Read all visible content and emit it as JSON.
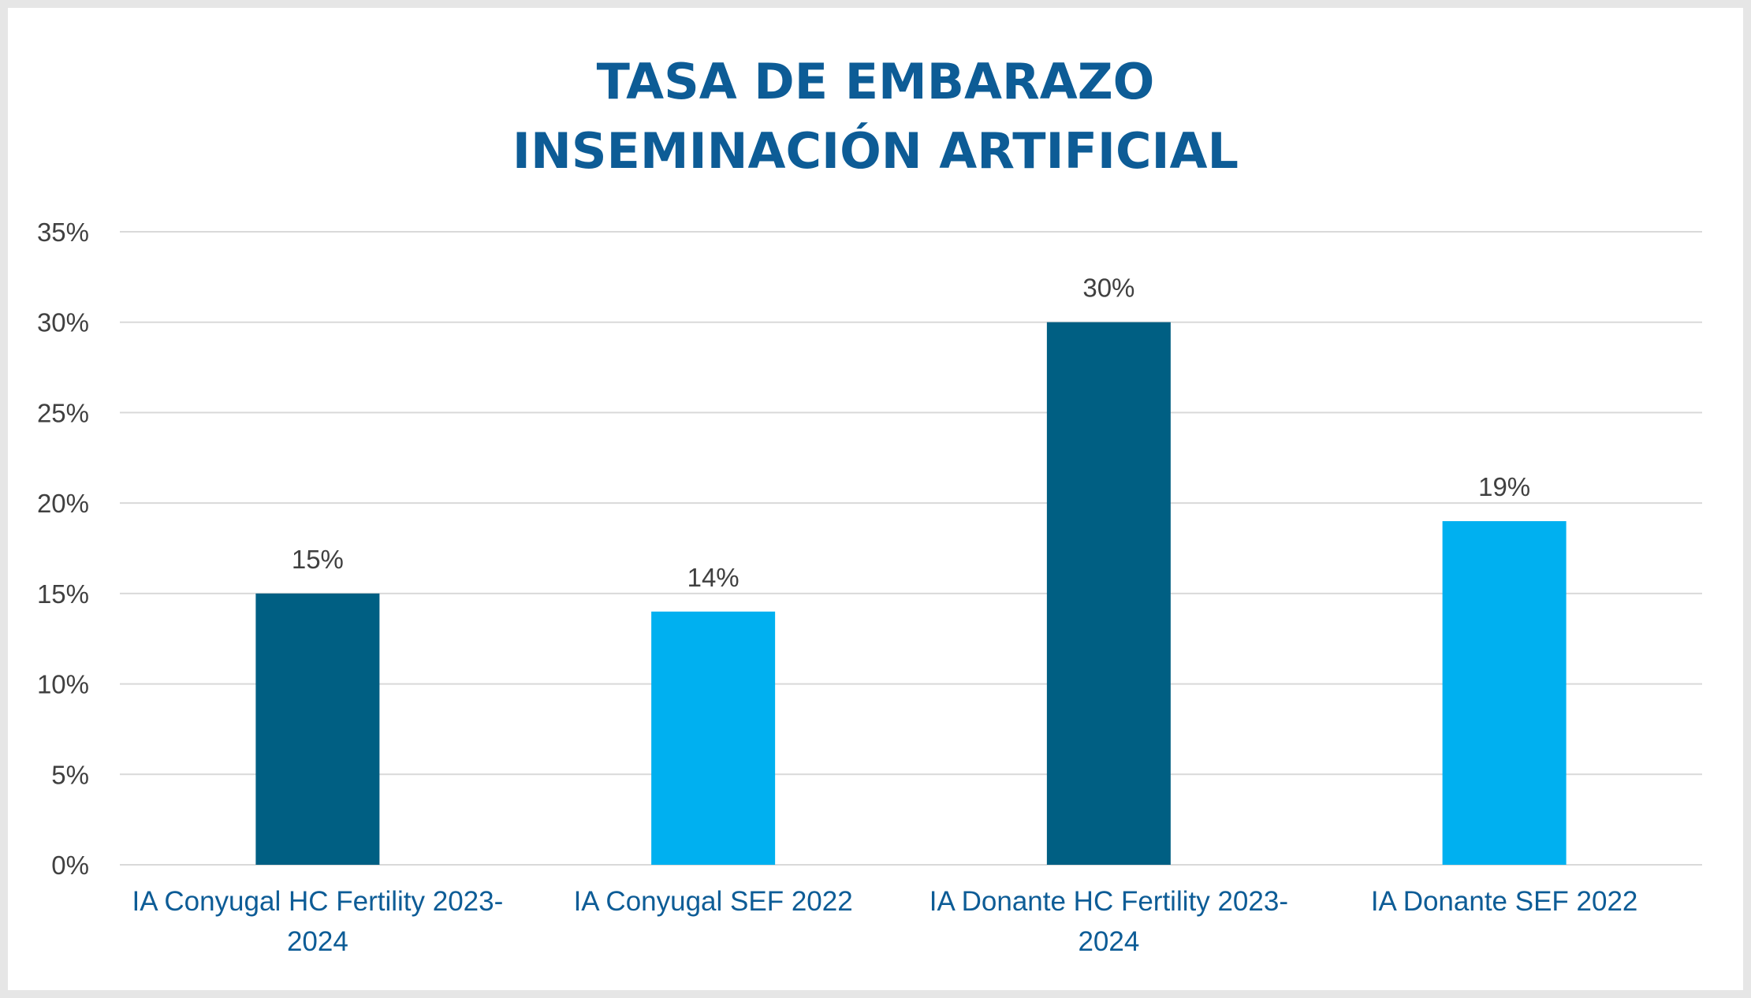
{
  "chart_data": {
    "type": "bar",
    "title": [
      "TASA DE EMBARAZO",
      "INSEMINACIÓN ARTIFICIAL"
    ],
    "categories": [
      [
        "IA Conyugal HC Fertility 2023-",
        "2024"
      ],
      [
        "IA Conyugal SEF 2022"
      ],
      [
        "IA Donante HC Fertility 2023-",
        "2024"
      ],
      [
        "IA Donante SEF 2022"
      ]
    ],
    "values": [
      15,
      14,
      30,
      19
    ],
    "value_labels": [
      "15%",
      "14%",
      "30%",
      "19%"
    ],
    "bar_colors": [
      "#005f83",
      "#00b0f0",
      "#005f83",
      "#00b0f0"
    ],
    "yticks": [
      0,
      5,
      10,
      15,
      20,
      25,
      30,
      35
    ],
    "ytick_labels": [
      "0%",
      "5%",
      "10%",
      "15%",
      "20%",
      "25%",
      "30%",
      "35%"
    ],
    "ylim": [
      0,
      35
    ],
    "grid": true,
    "legend": "none",
    "colors": {
      "title": "#0d5c96",
      "category_label": "#0d5c96",
      "gridline": "#d9d9d9",
      "axis_text": "#404040"
    }
  }
}
